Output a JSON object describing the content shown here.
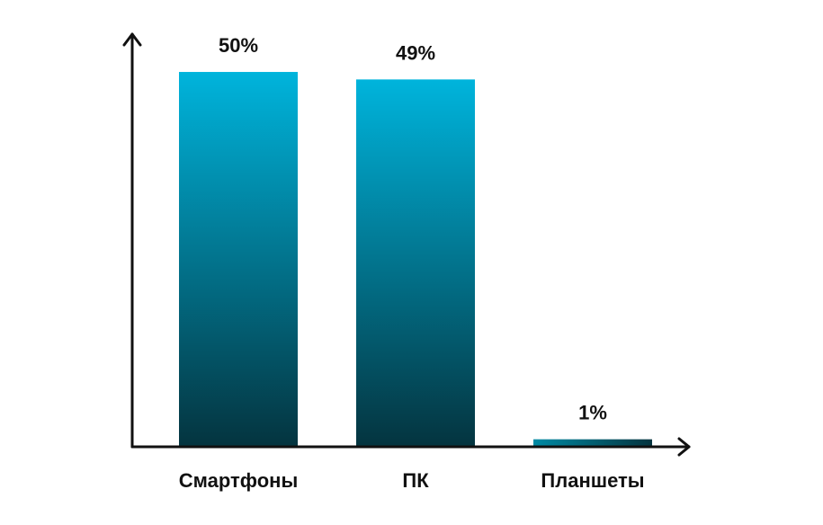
{
  "chart_data": {
    "type": "bar",
    "categories": [
      "Смартфоны",
      "ПК",
      "Планшеты"
    ],
    "values": [
      50,
      49,
      1
    ],
    "value_labels": [
      "50%",
      "49%",
      "1%"
    ],
    "title": "",
    "xlabel": "",
    "ylabel": "",
    "ylim": [
      0,
      56
    ],
    "grid": false,
    "legend": "none"
  },
  "colors": {
    "bar_top": "#00b4dc",
    "bar_mid": "#008aa4",
    "bar_bottom": "#04343f",
    "axis": "#111111"
  }
}
